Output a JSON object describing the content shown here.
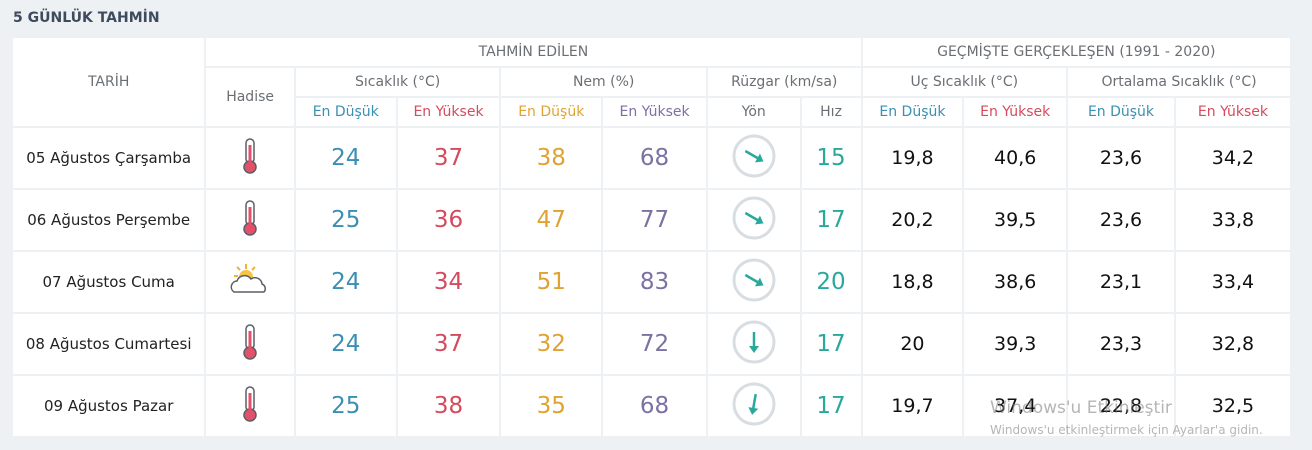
{
  "header": {
    "title": "5 GÜNLÜK TAHMİN"
  },
  "table": {
    "date_header": "TARİH",
    "forecast_header": "TAHMİN EDİLEN",
    "past_header": "GEÇMİŞTE GERÇEKLEŞEN (1991 - 2020)",
    "event_header": "Hadise",
    "temp_header": "Sıcaklık (°C)",
    "humidity_header": "Nem (%)",
    "wind_header": "Rüzgar (km/sa)",
    "extreme_header": "Uç Sıcaklık (°C)",
    "avg_header": "Ortalama Sıcaklık (°C)",
    "sub_headers": [
      "En Düşük",
      "En Yüksek",
      "En Düşük",
      "En Yüksek",
      "Yön",
      "Hız",
      "En Düşük",
      "En Yüksek",
      "En Düşük",
      "En Yüksek"
    ],
    "rows": [
      [
        "05 Ağustos Çarşamba",
        24,
        37,
        38,
        68,
        15,
        "19,8",
        "40,6",
        "23,6",
        "34,2"
      ],
      [
        "06 Ağustos Perşembe",
        25,
        36,
        47,
        77,
        17,
        "20,2",
        "39,5",
        "23,6",
        "33,8"
      ],
      [
        "07 Ağustos Cuma",
        24,
        34,
        51,
        83,
        20,
        "18,8",
        "38,6",
        "23,1",
        "33,4"
      ],
      [
        "08 Ağustos Cumartesi",
        24,
        37,
        32,
        72,
        17,
        "20",
        "39,3",
        "23,3",
        "32,8"
      ],
      [
        "09 Ağustos Pazar",
        25,
        38,
        35,
        68,
        17,
        "19,7",
        "37,4",
        "22,8",
        "32,5"
      ]
    ]
  },
  "watermark": {
    "title": "Windows'u Etkinleştir",
    "subtitle": "Windows'u etkinleştirmek için Ayarlar'a gidin."
  }
}
